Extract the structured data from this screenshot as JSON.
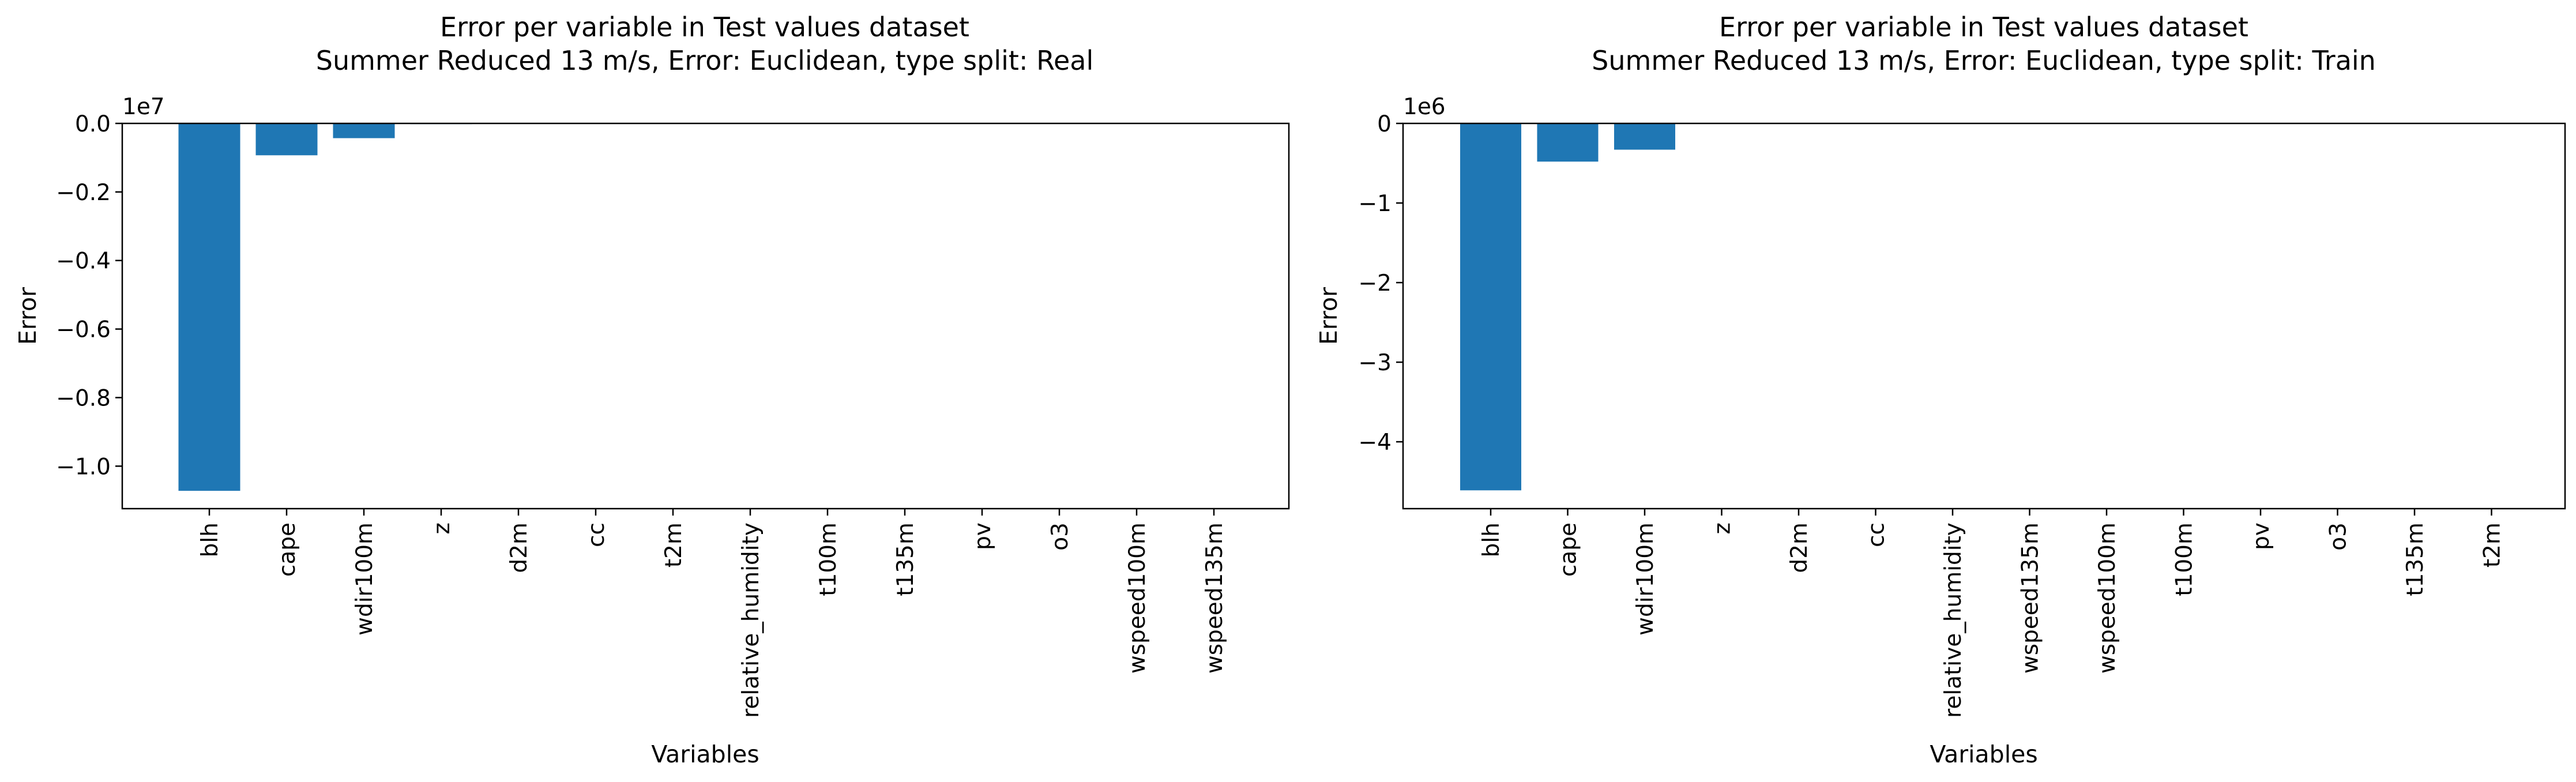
{
  "chart_data": [
    {
      "type": "bar",
      "title": "Error per variable in Test values dataset",
      "subtitle": "Summer Reduced 13 m/s, Error: Euclidean, type split: Real",
      "xlabel": "Variables",
      "ylabel": "Error",
      "y_offset_label": "1e7",
      "y_scale": 10000000,
      "ylim": [
        -11240000.0,
        0
      ],
      "yticks": [
        0,
        -2000000,
        -4000000,
        -6000000,
        -8000000,
        -10000000
      ],
      "ytick_labels": [
        "0.0",
        "−0.2",
        "−0.4",
        "−0.6",
        "−0.8",
        "−1.0"
      ],
      "categories": [
        "blh",
        "cape",
        "wdir100m",
        "z",
        "d2m",
        "cc",
        "t2m",
        "relative_humidity",
        "t100m",
        "t135m",
        "pv",
        "o3",
        "wspeed100m",
        "wspeed135m"
      ],
      "values": [
        -10720000,
        -930000,
        -430000,
        -20000,
        0,
        0,
        0,
        0,
        0,
        0,
        0,
        0,
        0,
        0
      ],
      "bar_color": "#1f77b4",
      "grid": false
    },
    {
      "type": "bar",
      "title": "Error per variable in Test values dataset",
      "subtitle": "Summer Reduced 13 m/s, Error: Euclidean, type split: Train",
      "xlabel": "Variables",
      "ylabel": "Error",
      "y_offset_label": "1e6",
      "y_scale": 1000000,
      "ylim": [
        -4840000.0,
        0
      ],
      "yticks": [
        0,
        -1000000,
        -2000000,
        -3000000,
        -4000000
      ],
      "ytick_labels": [
        "0",
        "−1",
        "−2",
        "−3",
        "−4"
      ],
      "categories": [
        "blh",
        "cape",
        "wdir100m",
        "z",
        "d2m",
        "cc",
        "relative_humidity",
        "wspeed135m",
        "wspeed100m",
        "t100m",
        "pv",
        "o3",
        "t135m",
        "t2m"
      ],
      "values": [
        -4610000,
        -480000,
        -330000,
        0,
        0,
        0,
        0,
        0,
        0,
        0,
        0,
        0,
        0,
        0
      ],
      "bar_color": "#1f77b4",
      "grid": false
    }
  ]
}
